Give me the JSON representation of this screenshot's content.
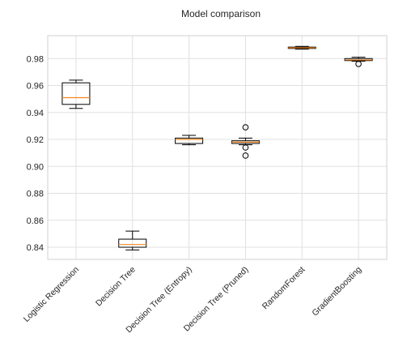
{
  "chart_data": {
    "type": "box",
    "title": "Model comparison",
    "xlabel": "",
    "ylabel": "",
    "ylim": [
      0.831,
      0.997
    ],
    "yticks": [
      "0.84",
      "0.86",
      "0.88",
      "0.90",
      "0.92",
      "0.94",
      "0.96",
      "0.98"
    ],
    "grid": true,
    "categories": [
      "Logistic Regression",
      "Decision Tree",
      "Decision Tree (Entropy)",
      "Decision Tree (Pruned)",
      "RandomForest",
      "GradientBoosting"
    ],
    "boxes": [
      {
        "whisker_low": 0.943,
        "q1": 0.946,
        "median": 0.951,
        "q3": 0.962,
        "whisker_high": 0.964,
        "outliers": []
      },
      {
        "whisker_low": 0.838,
        "q1": 0.84,
        "median": 0.842,
        "q3": 0.846,
        "whisker_high": 0.852,
        "outliers": []
      },
      {
        "whisker_low": 0.916,
        "q1": 0.917,
        "median": 0.92,
        "q3": 0.921,
        "whisker_high": 0.923,
        "outliers": []
      },
      {
        "whisker_low": 0.916,
        "q1": 0.917,
        "median": 0.918,
        "q3": 0.919,
        "whisker_high": 0.921,
        "outliers": [
          0.929,
          0.914,
          0.908
        ]
      },
      {
        "whisker_low": 0.987,
        "q1": 0.9875,
        "median": 0.988,
        "q3": 0.9885,
        "whisker_high": 0.989,
        "outliers": []
      },
      {
        "whisker_low": 0.978,
        "q1": 0.9785,
        "median": 0.979,
        "q3": 0.98,
        "whisker_high": 0.981,
        "outliers": [
          0.976
        ]
      }
    ],
    "colors": {
      "box": "#000000",
      "median": "#f5871f",
      "grid": "#e0e0e0",
      "spine": "#d0d0d0"
    }
  }
}
